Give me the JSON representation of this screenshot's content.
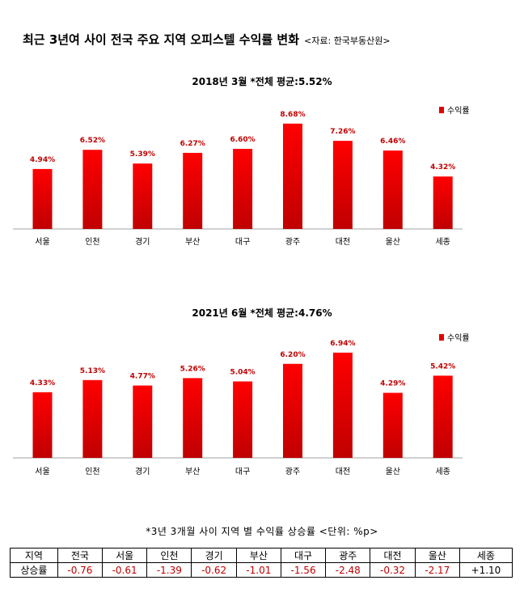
{
  "page": {
    "title": "최근 3년여 사이 전국 주요 지역 오피스텔 수익률 변화",
    "source": "<자료: 한국부동산원>"
  },
  "charts": [
    {
      "heading": "2018년 3월 *전체 평균:5.52%",
      "legend": "수익률"
    },
    {
      "heading": "2021년 6월 *전체 평균:4.76%",
      "legend": "수익률"
    }
  ],
  "chart_data": [
    {
      "type": "bar",
      "title": "2018년 3월 *전체 평균:5.52%",
      "categories": [
        "서울",
        "인천",
        "경기",
        "부산",
        "대구",
        "광주",
        "대전",
        "울산",
        "세종"
      ],
      "series": [
        {
          "name": "수익률",
          "values": [
            4.94,
            6.52,
            5.39,
            6.27,
            6.6,
            8.68,
            7.26,
            6.46,
            4.32
          ]
        }
      ],
      "value_labels": [
        "4.94%",
        "6.52%",
        "5.39%",
        "6.27%",
        "6.60%",
        "8.68%",
        "7.26%",
        "6.46%",
        "4.32%"
      ],
      "ylim": [
        0,
        10
      ],
      "grid": false,
      "legend_position": "top-right",
      "color": "#e00000"
    },
    {
      "type": "bar",
      "title": "2021년 6월 *전체 평균:4.76%",
      "categories": [
        "서울",
        "인천",
        "경기",
        "부산",
        "대구",
        "광주",
        "대전",
        "울산",
        "세종"
      ],
      "series": [
        {
          "name": "수익률",
          "values": [
            4.33,
            5.13,
            4.77,
            5.26,
            5.04,
            6.2,
            6.94,
            4.29,
            5.42
          ]
        }
      ],
      "value_labels": [
        "4.33%",
        "5.13%",
        "4.77%",
        "5.26%",
        "5.04%",
        "6.20%",
        "6.94%",
        "4.29%",
        "5.42%"
      ],
      "ylim": [
        0,
        8
      ],
      "grid": false,
      "legend_position": "top-right",
      "color": "#e00000"
    }
  ],
  "table": {
    "title": "*3년 3개월 사이 지역 별 수익률 상승률 <단위: %p>",
    "header": [
      "지역",
      "전국",
      "서울",
      "인천",
      "경기",
      "부산",
      "대구",
      "광주",
      "대전",
      "울산",
      "세종"
    ],
    "row": [
      "상승률",
      "-0.76",
      "-0.61",
      "-1.39",
      "-0.62",
      "-1.01",
      "-1.56",
      "-2.48",
      "-0.32",
      "-2.17",
      "+1.10"
    ]
  }
}
